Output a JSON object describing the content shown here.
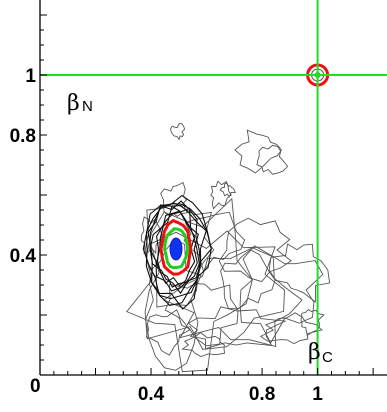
{
  "chart_data": {
    "type": "contour",
    "xlim": [
      0,
      1.25
    ],
    "ylim": [
      0,
      1.25
    ],
    "x_ticks": [
      {
        "value": 0.4,
        "label": "0.4"
      },
      {
        "value": 0.8,
        "label": "0.8"
      },
      {
        "value": 1,
        "label": "1"
      }
    ],
    "y_ticks": [
      {
        "value": 0.4,
        "label": "0.4"
      },
      {
        "value": 0.8,
        "label": "0.8"
      },
      {
        "value": 1,
        "label": "1"
      }
    ],
    "origin_label": "0",
    "x_axis_label": {
      "symbol": "β",
      "subscript": "C"
    },
    "y_axis_label": {
      "symbol": "β",
      "subscript": "N"
    },
    "reference_lines": {
      "x": 1,
      "y": 1,
      "color": "#22dd22"
    },
    "density_peaks": [
      {
        "x": 0.49,
        "y": 0.42,
        "height": 1.0
      },
      {
        "x": 1.0,
        "y": 1.0,
        "height": 0.45
      }
    ],
    "contour_colors": {
      "outer": "#555555",
      "inner_dark": "#111111",
      "red": "#ee1111",
      "green": "#22cc22",
      "blue": "#1133ee",
      "reference": "#22dd22"
    },
    "grid": false
  }
}
